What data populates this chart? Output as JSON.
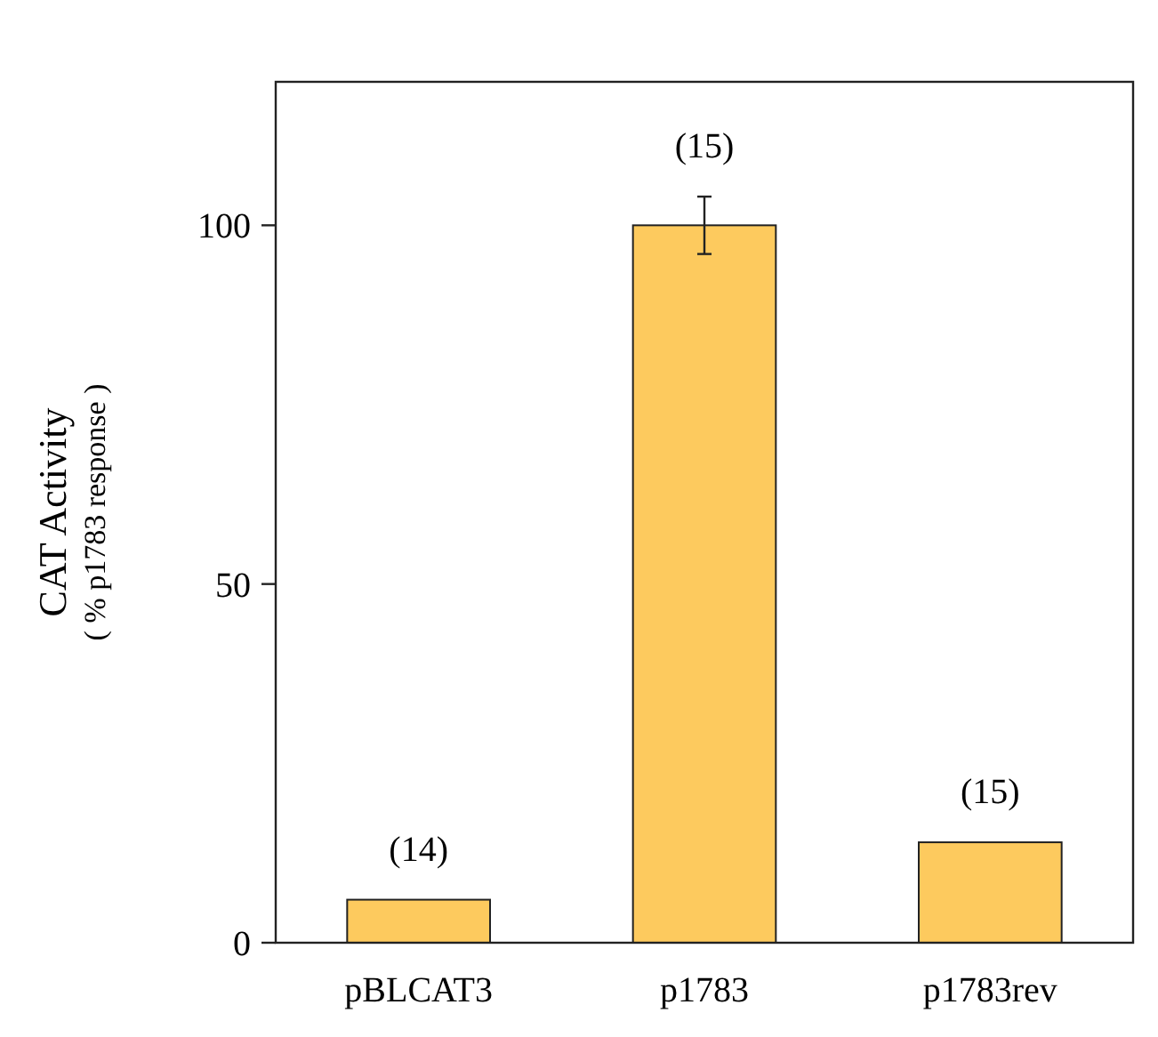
{
  "chart_data": {
    "type": "bar",
    "ylabel": "CAT Activity\n( % p1783 response )",
    "categories": [
      "pBLCAT3",
      "p1783",
      "p1783rev"
    ],
    "values": [
      6,
      100,
      14
    ],
    "errors": [
      null,
      4,
      null
    ],
    "color": "#fdca5e",
    "ylim": [
      0,
      120
    ],
    "yticks": [
      0,
      50,
      100
    ],
    "grid": false,
    "annotations": [
      {
        "text": "(14)",
        "x": "pBLCAT3",
        "y": 6
      },
      {
        "text": "(15)",
        "x": "p1783",
        "y": 104
      },
      {
        "text": "(15)",
        "x": "p1783rev",
        "y": 14
      }
    ]
  }
}
